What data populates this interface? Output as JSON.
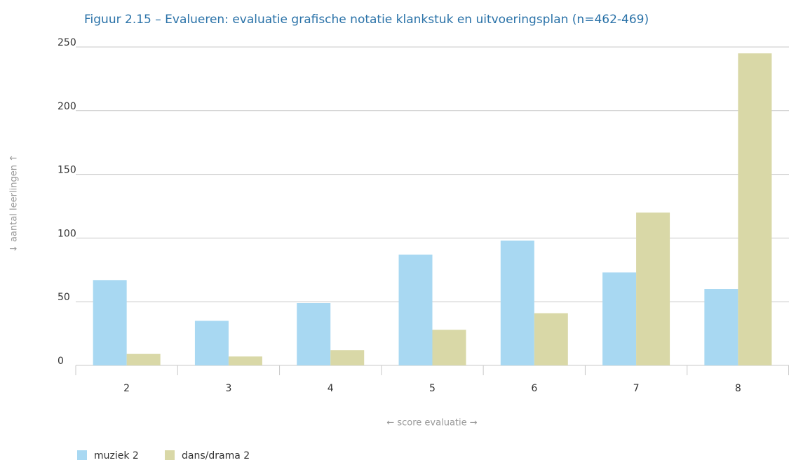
{
  "chart_data": {
    "type": "bar",
    "title": "Figuur 2.15 – Evalueren: evaluatie grafische notatie klankstuk en uitvoeringsplan (n=462-469)",
    "x_label": "← score evaluatie →",
    "y_label": "↓ aantal leerlingen ↑",
    "categories": [
      "2",
      "3",
      "4",
      "5",
      "6",
      "7",
      "8"
    ],
    "series": [
      {
        "name": "muziek 2",
        "color": "#a8d8f2",
        "values": [
          67,
          35,
          49,
          87,
          98,
          73,
          60
        ]
      },
      {
        "name": "dans/drama 2",
        "color": "#d9d8a7",
        "values": [
          9,
          7,
          12,
          28,
          41,
          120,
          245
        ]
      }
    ],
    "ylim": [
      0,
      250
    ],
    "yticks": [
      0,
      50,
      100,
      150,
      200,
      250
    ],
    "grid": true,
    "legend": "bottom-left"
  }
}
